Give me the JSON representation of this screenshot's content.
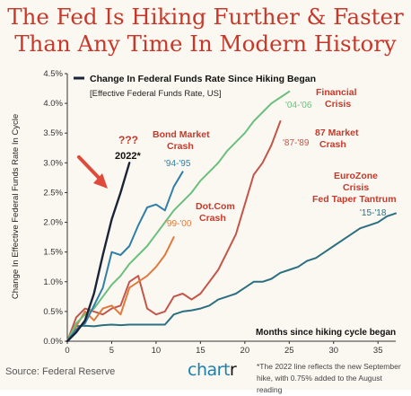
{
  "header": {
    "title_line1": "The Fed Is Hiking Further & Faster",
    "title_line2": "Than Any Time In Modern History"
  },
  "footer": {
    "source": "Source: Federal Reserve",
    "brand_prefix": "chart",
    "brand_suffix": "r",
    "footnote_line1": "*The 2022 line reflects the new September",
    "footnote_line2": "hike, with 0.75% added to the August reading"
  },
  "colors": {
    "title": "#c8382a",
    "series_2022": "#1a2438",
    "series_1994": "#2f7fa8",
    "series_2004": "#6bbf7e",
    "series_1987": "#c2564a",
    "series_1999": "#e07a3c",
    "series_2015": "#2b6f80",
    "arrow": "#e04a3a",
    "brand": "#1c7fae"
  },
  "chart_data": {
    "type": "line",
    "title": "The Fed Is Hiking Further & Faster Than Any Time In Modern History",
    "legend_title": "Change In Federal Funds Rate Since Hiking Began",
    "legend_subtitle": "[Effective Federal Funds Rate, US]",
    "legend_placement": "top-left",
    "xlabel": "Months since hiking cycle began",
    "ylabel": "Change In Effective Federal Funds Rate In Cycle",
    "xlim": [
      0,
      37
    ],
    "ylim": [
      0,
      4.5
    ],
    "x_ticks": [
      0,
      5,
      10,
      15,
      20,
      25,
      30,
      35
    ],
    "y_ticks": [
      "0.0%",
      "0.5%",
      "1.0%",
      "1.5%",
      "2.0%",
      "2.5%",
      "3.0%",
      "3.5%",
      "4.0%",
      "4.5%"
    ],
    "grid": false,
    "series": [
      {
        "name": "2022*",
        "annotation": "???",
        "x": [
          0,
          1,
          2,
          3,
          4,
          5,
          6,
          7
        ],
        "y": [
          0,
          0.15,
          0.35,
          0.8,
          1.45,
          2.05,
          2.5,
          3.0
        ]
      },
      {
        "label": "'94-'95",
        "event": "Bond Market Crash",
        "x": [
          0,
          1,
          2,
          3,
          4,
          5,
          6,
          7,
          8,
          9,
          10,
          11,
          12,
          13
        ],
        "y": [
          0,
          0.2,
          0.3,
          0.6,
          0.9,
          1.5,
          1.45,
          1.6,
          1.95,
          2.25,
          2.3,
          2.2,
          2.6,
          2.85
        ]
      },
      {
        "label": "'04-'06",
        "event": "Financial Crisis",
        "x": [
          0,
          1,
          2,
          3,
          4,
          5,
          6,
          7,
          8,
          9,
          10,
          11,
          12,
          13,
          14,
          15,
          16,
          17,
          18,
          19,
          20,
          21,
          22,
          23,
          24,
          25
        ],
        "y": [
          0,
          0.3,
          0.45,
          0.55,
          0.75,
          0.95,
          1.1,
          1.3,
          1.45,
          1.6,
          1.8,
          2.0,
          2.2,
          2.35,
          2.5,
          2.7,
          2.85,
          3.0,
          3.2,
          3.35,
          3.5,
          3.7,
          3.85,
          4.0,
          4.1,
          4.2
        ]
      },
      {
        "label": "'87-'89",
        "event": "87 Market Crash",
        "x": [
          0,
          1,
          2,
          3,
          4,
          5,
          6,
          7,
          8,
          9,
          10,
          11,
          12,
          13,
          14,
          15,
          16,
          17,
          18,
          19,
          20,
          21,
          22,
          23,
          24
        ],
        "y": [
          0,
          0.4,
          0.55,
          0.5,
          0.45,
          0.55,
          0.6,
          1.0,
          1.1,
          0.55,
          0.45,
          0.5,
          0.75,
          0.8,
          0.7,
          0.8,
          1.0,
          1.2,
          1.5,
          1.8,
          2.3,
          2.8,
          3.0,
          3.3,
          3.7
        ]
      },
      {
        "label": "'99-'00",
        "event": "Dot.Com Crash",
        "x": [
          0,
          1,
          2,
          3,
          4,
          5,
          6,
          7,
          8,
          9,
          10,
          11,
          12
        ],
        "y": [
          0,
          0.25,
          0.5,
          0.35,
          0.55,
          0.6,
          0.45,
          0.9,
          1.0,
          1.1,
          1.25,
          1.45,
          1.75
        ]
      },
      {
        "label": "'15-'18",
        "event": "EuroZone Crisis Fed Taper Tantrum",
        "x": [
          0,
          1,
          2,
          3,
          4,
          5,
          6,
          7,
          8,
          9,
          10,
          11,
          12,
          13,
          14,
          15,
          16,
          17,
          18,
          19,
          20,
          21,
          22,
          23,
          24,
          25,
          26,
          27,
          28,
          29,
          30,
          31,
          32,
          33,
          34,
          35,
          36,
          37
        ],
        "y": [
          0,
          0.25,
          0.26,
          0.25,
          0.27,
          0.28,
          0.27,
          0.28,
          0.28,
          0.28,
          0.28,
          0.28,
          0.45,
          0.5,
          0.52,
          0.55,
          0.6,
          0.7,
          0.75,
          0.8,
          0.9,
          1.0,
          1.0,
          1.05,
          1.15,
          1.2,
          1.25,
          1.35,
          1.4,
          1.5,
          1.6,
          1.7,
          1.8,
          1.9,
          1.95,
          2.0,
          2.1,
          2.15
        ]
      }
    ],
    "annotations": {
      "bond_line1": "Bond Market",
      "bond_line2": "Crash",
      "fin_line1": "Financial",
      "fin_line2": "Crisis",
      "mkt_line1": "87 Market",
      "mkt_line2": "Crash",
      "dot_line1": "Dot.Com",
      "dot_line2": "Crash",
      "euro_line1": "EuroZone",
      "euro_line2": "Crisis",
      "euro_line3": "Fed Taper Tantrum"
    }
  }
}
